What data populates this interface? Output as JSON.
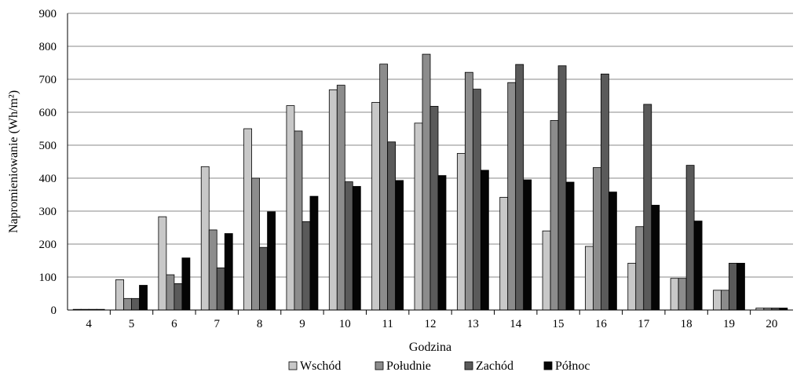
{
  "chart_data": {
    "type": "bar",
    "categories": [
      "4",
      "5",
      "6",
      "7",
      "8",
      "9",
      "10",
      "11",
      "12",
      "13",
      "14",
      "15",
      "16",
      "17",
      "18",
      "19",
      "20"
    ],
    "series": [
      {
        "name": "Wschód",
        "color": "#c8c8c8",
        "values": [
          2,
          92,
          283,
          435,
          550,
          620,
          668,
          630,
          567,
          475,
          342,
          240,
          193,
          142,
          96,
          60,
          6
        ]
      },
      {
        "name": "Południe",
        "color": "#8c8c8c",
        "values": [
          2,
          35,
          107,
          243,
          400,
          543,
          682,
          746,
          776,
          721,
          690,
          575,
          432,
          253,
          96,
          60,
          6
        ]
      },
      {
        "name": "Zachód",
        "color": "#5a5a5a",
        "values": [
          2,
          35,
          80,
          128,
          190,
          268,
          389,
          510,
          618,
          670,
          745,
          741,
          716,
          624,
          439,
          142,
          6
        ]
      },
      {
        "name": "Północ",
        "color": "#050505",
        "values": [
          2,
          75,
          158,
          232,
          298,
          345,
          375,
          393,
          408,
          424,
          395,
          388,
          358,
          318,
          270,
          142,
          6
        ]
      }
    ],
    "xlabel": "Godzina",
    "ylabel": "Napromieniowanie (Wh/m²)",
    "ylim": [
      0,
      900
    ],
    "ystep": 100,
    "grid": true,
    "legend": "bottom"
  }
}
